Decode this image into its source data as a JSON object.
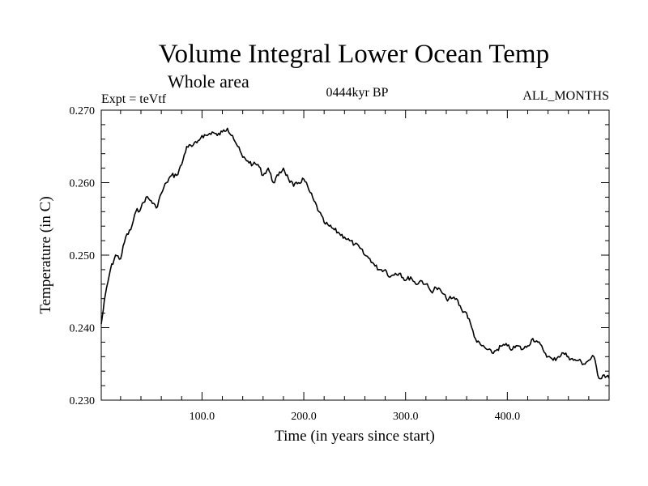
{
  "chart_data": {
    "type": "line",
    "title": "Volume Integral Lower Ocean Temp",
    "subtitle": "Whole area",
    "experiment_label": "Expt = teVtf",
    "period_label": "0444kyr BP",
    "months_label": "ALL_MONTHS",
    "xlabel": "Time (in years since start)",
    "ylabel": "Temperature (in C)",
    "xlim": [
      1,
      500
    ],
    "ylim": [
      0.23,
      0.27
    ],
    "x_ticks": [
      {
        "value": 100,
        "label": "100.0"
      },
      {
        "value": 200,
        "label": "200.0"
      },
      {
        "value": 300,
        "label": "300.0"
      },
      {
        "value": 400,
        "label": "400.0"
      }
    ],
    "y_ticks": [
      {
        "value": 0.23,
        "label": "0.230"
      },
      {
        "value": 0.24,
        "label": "0.240"
      },
      {
        "value": 0.25,
        "label": "0.250"
      },
      {
        "value": 0.26,
        "label": "0.260"
      },
      {
        "value": 0.27,
        "label": "0.270"
      }
    ],
    "grid": false,
    "line_color": "#000000",
    "series": [
      {
        "x": [
          1,
          5,
          10,
          15,
          20,
          25,
          30,
          35,
          40,
          45,
          50,
          55,
          60,
          65,
          70,
          75,
          80,
          85,
          90,
          95,
          100,
          105,
          110,
          115,
          120,
          125,
          130,
          135,
          140,
          145,
          150,
          155,
          160,
          165,
          170,
          175,
          180,
          185,
          190,
          195,
          200,
          205,
          210,
          215,
          220,
          225,
          230,
          235,
          240,
          245,
          250,
          255,
          260,
          265,
          270,
          275,
          280,
          285,
          290,
          295,
          300,
          305,
          310,
          315,
          320,
          325,
          330,
          335,
          340,
          345,
          350,
          355,
          360,
          365,
          370,
          375,
          380,
          385,
          390,
          395,
          400,
          405,
          410,
          415,
          420,
          425,
          430,
          435,
          440,
          445,
          450,
          455,
          460,
          465,
          470,
          475,
          480,
          485,
          490,
          495,
          500
        ],
        "values": [
          0.2405,
          0.2445,
          0.248,
          0.25,
          0.2495,
          0.2525,
          0.2535,
          0.256,
          0.2565,
          0.258,
          0.2575,
          0.2565,
          0.2585,
          0.26,
          0.261,
          0.261,
          0.2625,
          0.265,
          0.265,
          0.2655,
          0.2665,
          0.2665,
          0.267,
          0.2665,
          0.267,
          0.2675,
          0.2665,
          0.265,
          0.2635,
          0.263,
          0.2625,
          0.2625,
          0.261,
          0.262,
          0.26,
          0.261,
          0.262,
          0.2605,
          0.2595,
          0.26,
          0.2605,
          0.259,
          0.2575,
          0.256,
          0.2545,
          0.254,
          0.2535,
          0.253,
          0.2525,
          0.252,
          0.2515,
          0.251,
          0.25,
          0.2495,
          0.2485,
          0.248,
          0.248,
          0.247,
          0.2475,
          0.2475,
          0.2465,
          0.247,
          0.246,
          0.2465,
          0.246,
          0.245,
          0.2455,
          0.245,
          0.244,
          0.244,
          0.244,
          0.2425,
          0.242,
          0.24,
          0.238,
          0.2375,
          0.237,
          0.2365,
          0.237,
          0.2375,
          0.2375,
          0.237,
          0.2375,
          0.237,
          0.2375,
          0.2385,
          0.238,
          0.237,
          0.236,
          0.2355,
          0.236,
          0.2365,
          0.236,
          0.2355,
          0.2355,
          0.235,
          0.2355,
          0.236,
          0.233,
          0.2335,
          0.233
        ]
      }
    ]
  }
}
